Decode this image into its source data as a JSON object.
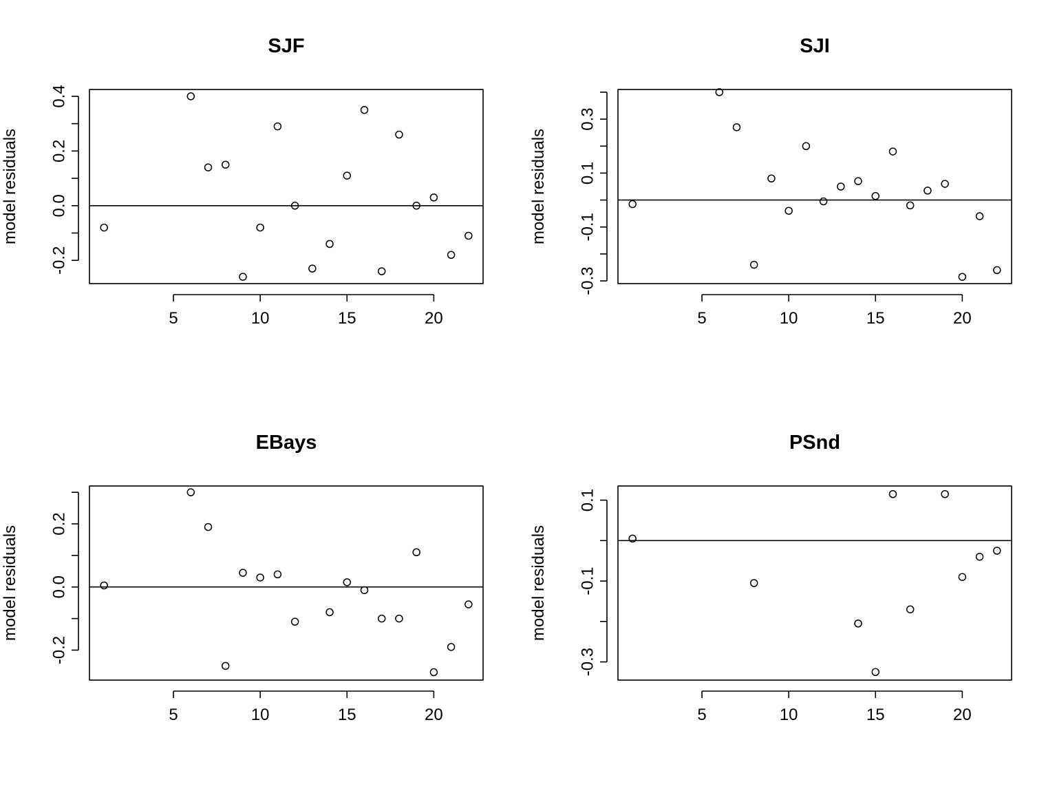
{
  "chart_data": [
    {
      "type": "scatter",
      "title": "SJF",
      "xlabel": "",
      "ylabel": "model residuals",
      "xlim": [
        0.16,
        22.84
      ],
      "ylim": [
        -0.285,
        0.425
      ],
      "xticks": [
        5,
        10,
        15,
        20
      ],
      "yticks": [
        -0.3,
        -0.2,
        -0.1,
        0.0,
        0.1,
        0.2,
        0.3,
        0.4
      ],
      "yticklabels": [
        "",
        "-0.2",
        "",
        "0.0",
        "",
        "0.2",
        "",
        "0.4"
      ],
      "hline": 0,
      "points": [
        {
          "x": 1,
          "y": -0.08
        },
        {
          "x": 6,
          "y": 0.4
        },
        {
          "x": 7,
          "y": 0.14
        },
        {
          "x": 8,
          "y": 0.15
        },
        {
          "x": 9,
          "y": -0.26
        },
        {
          "x": 10,
          "y": -0.08
        },
        {
          "x": 11,
          "y": 0.29
        },
        {
          "x": 12,
          "y": 0.0
        },
        {
          "x": 13,
          "y": -0.23
        },
        {
          "x": 14,
          "y": -0.14
        },
        {
          "x": 15,
          "y": 0.11
        },
        {
          "x": 16,
          "y": 0.35
        },
        {
          "x": 17,
          "y": -0.24
        },
        {
          "x": 18,
          "y": 0.26
        },
        {
          "x": 19,
          "y": 0.0
        },
        {
          "x": 20,
          "y": 0.03
        },
        {
          "x": 21,
          "y": -0.18
        },
        {
          "x": 22,
          "y": -0.11
        }
      ]
    },
    {
      "type": "scatter",
      "title": "SJI",
      "xlabel": "",
      "ylabel": "model residuals",
      "xlim": [
        0.16,
        22.84
      ],
      "ylim": [
        -0.31,
        0.41
      ],
      "xticks": [
        5,
        10,
        15,
        20
      ],
      "yticks": [
        -0.3,
        -0.2,
        -0.1,
        0.0,
        0.1,
        0.2,
        0.3,
        0.4
      ],
      "yticklabels": [
        "-0.3",
        "",
        "-0.1",
        "",
        "0.1",
        "",
        "0.3",
        ""
      ],
      "hline": 0,
      "points": [
        {
          "x": 1,
          "y": -0.015
        },
        {
          "x": 6,
          "y": 0.4
        },
        {
          "x": 7,
          "y": 0.27
        },
        {
          "x": 8,
          "y": -0.24
        },
        {
          "x": 9,
          "y": 0.08
        },
        {
          "x": 10,
          "y": -0.04
        },
        {
          "x": 11,
          "y": 0.2
        },
        {
          "x": 12,
          "y": -0.005
        },
        {
          "x": 13,
          "y": 0.05
        },
        {
          "x": 14,
          "y": 0.07
        },
        {
          "x": 15,
          "y": 0.015
        },
        {
          "x": 16,
          "y": 0.18
        },
        {
          "x": 17,
          "y": -0.02
        },
        {
          "x": 18,
          "y": 0.035
        },
        {
          "x": 19,
          "y": 0.06
        },
        {
          "x": 20,
          "y": -0.285
        },
        {
          "x": 21,
          "y": -0.06
        },
        {
          "x": 22,
          "y": -0.26
        }
      ]
    },
    {
      "type": "scatter",
      "title": "EBays",
      "xlabel": "",
      "ylabel": "model residuals",
      "xlim": [
        0.16,
        22.84
      ],
      "ylim": [
        -0.295,
        0.32
      ],
      "xticks": [
        5,
        10,
        15,
        20
      ],
      "yticks": [
        -0.3,
        -0.2,
        -0.1,
        0.0,
        0.1,
        0.2,
        0.3
      ],
      "yticklabels": [
        "",
        "-0.2",
        "",
        "0.0",
        "",
        "0.2",
        ""
      ],
      "hline": 0,
      "points": [
        {
          "x": 1,
          "y": 0.005
        },
        {
          "x": 6,
          "y": 0.3
        },
        {
          "x": 7,
          "y": 0.19
        },
        {
          "x": 8,
          "y": -0.25
        },
        {
          "x": 9,
          "y": 0.045
        },
        {
          "x": 10,
          "y": 0.03
        },
        {
          "x": 11,
          "y": 0.04
        },
        {
          "x": 12,
          "y": -0.11
        },
        {
          "x": 14,
          "y": -0.08
        },
        {
          "x": 15,
          "y": 0.015
        },
        {
          "x": 16,
          "y": -0.01
        },
        {
          "x": 17,
          "y": -0.1
        },
        {
          "x": 18,
          "y": -0.1
        },
        {
          "x": 19,
          "y": 0.11
        },
        {
          "x": 20,
          "y": -0.27
        },
        {
          "x": 21,
          "y": -0.19
        },
        {
          "x": 22,
          "y": -0.055
        }
      ]
    },
    {
      "type": "scatter",
      "title": "PSnd",
      "xlabel": "",
      "ylabel": "model residuals",
      "xlim": [
        0.16,
        22.84
      ],
      "ylim": [
        -0.345,
        0.135
      ],
      "xticks": [
        5,
        10,
        15,
        20
      ],
      "yticks": [
        -0.3,
        -0.2,
        -0.1,
        0.0,
        0.1
      ],
      "yticklabels": [
        "-0.3",
        "",
        "-0.1",
        "",
        "0.1"
      ],
      "hline": 0,
      "points": [
        {
          "x": 1,
          "y": 0.005
        },
        {
          "x": 8,
          "y": -0.105
        },
        {
          "x": 14,
          "y": -0.205
        },
        {
          "x": 15,
          "y": -0.325
        },
        {
          "x": 16,
          "y": 0.115
        },
        {
          "x": 17,
          "y": -0.17
        },
        {
          "x": 19,
          "y": 0.115
        },
        {
          "x": 20,
          "y": -0.09
        },
        {
          "x": 21,
          "y": -0.04
        },
        {
          "x": 22,
          "y": -0.025
        }
      ]
    }
  ]
}
